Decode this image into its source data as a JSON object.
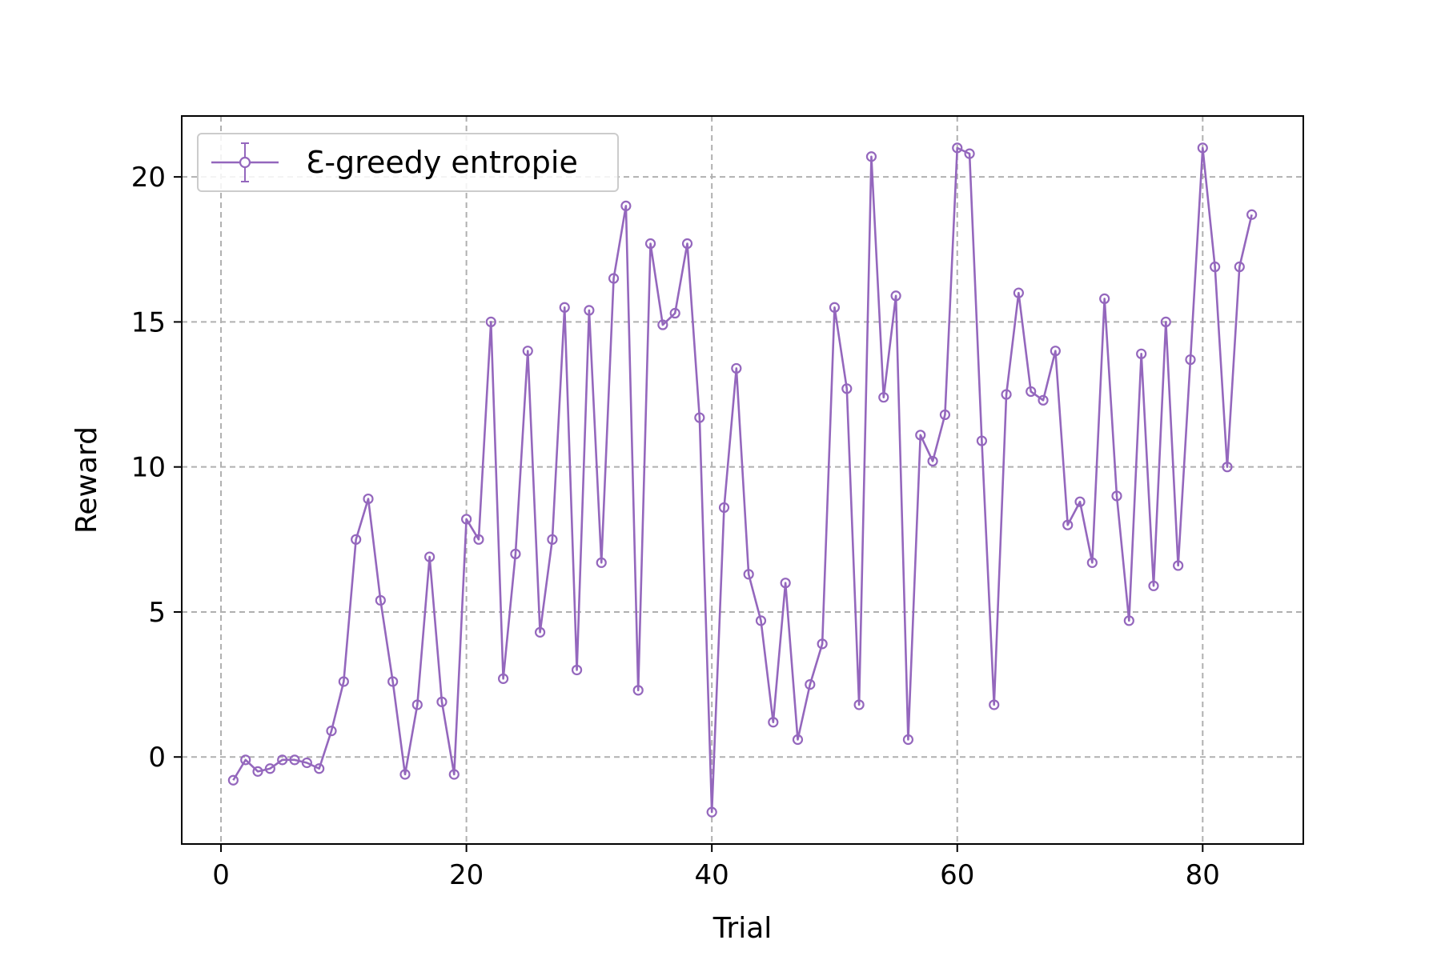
{
  "chart_data": {
    "type": "line",
    "xlabel": "Trial",
    "ylabel": "Reward",
    "xlim": [
      -3.2,
      88.2
    ],
    "ylim": [
      -3.0,
      22.1
    ],
    "xticks": [
      0,
      20,
      40,
      60,
      80
    ],
    "yticks": [
      0,
      5,
      10,
      15,
      20
    ],
    "grid": true,
    "legend_position": "upper left",
    "series": [
      {
        "name": "Ɛ-greedy entropie",
        "color": "#9467bd",
        "marker": "circle",
        "x": [
          1,
          2,
          3,
          4,
          5,
          6,
          7,
          8,
          9,
          10,
          11,
          12,
          13,
          14,
          15,
          16,
          17,
          18,
          19,
          20,
          21,
          22,
          23,
          24,
          25,
          26,
          27,
          28,
          29,
          30,
          31,
          32,
          33,
          34,
          35,
          36,
          37,
          38,
          39,
          40,
          41,
          42,
          43,
          44,
          45,
          46,
          47,
          48,
          49,
          50,
          51,
          52,
          53,
          54,
          55,
          56,
          57,
          58,
          59,
          60,
          61,
          62,
          63,
          64,
          65,
          66,
          67,
          68,
          69,
          70,
          71,
          72,
          73,
          74,
          75,
          76,
          77,
          78,
          79,
          80,
          81,
          82,
          83,
          84
        ],
        "y": [
          -0.8,
          -0.1,
          -0.5,
          -0.4,
          -0.1,
          -0.1,
          -0.2,
          -0.4,
          0.9,
          2.6,
          7.5,
          8.9,
          5.4,
          2.6,
          -0.6,
          1.8,
          6.9,
          1.9,
          -0.6,
          8.2,
          7.5,
          15.0,
          2.7,
          7.0,
          14.0,
          4.3,
          7.5,
          15.5,
          3.0,
          15.4,
          6.7,
          16.5,
          19.0,
          2.3,
          17.7,
          14.9,
          15.3,
          17.7,
          11.7,
          -1.9,
          8.6,
          13.4,
          6.3,
          4.7,
          1.2,
          6.0,
          0.6,
          2.5,
          3.9,
          15.5,
          12.7,
          1.8,
          20.7,
          12.4,
          15.9,
          0.6,
          11.1,
          10.2,
          11.8,
          21.0,
          20.8,
          10.9,
          1.8,
          12.5,
          16.0,
          12.6,
          12.3,
          14.0,
          8.0,
          8.8,
          6.7,
          15.8,
          9.0,
          4.7,
          13.9,
          5.9,
          15.0,
          6.6,
          13.7,
          21.0,
          16.9,
          10.0,
          16.9,
          18.7
        ]
      }
    ]
  }
}
